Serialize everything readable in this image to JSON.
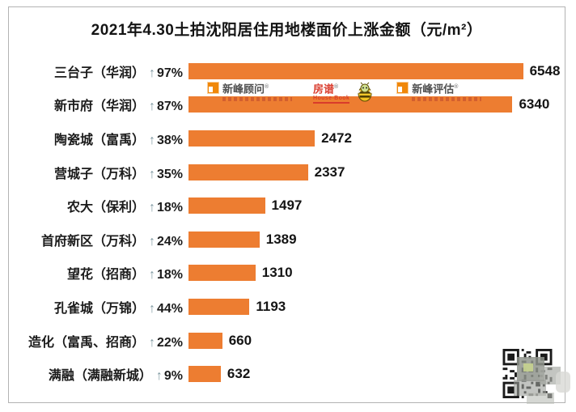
{
  "title": "2021年4.30土拍沈阳居住用地楼面价上涨金额（元/m²）",
  "chart_data": {
    "type": "bar",
    "orientation": "horizontal",
    "title": "2021年4.30土拍沈阳居住用地楼面价上涨金额（元/m²）",
    "categories": [
      "三台子（华润）",
      "新市府（华润）",
      "陶瓷城（富禹）",
      "营城子（万科）",
      "农大（保利）",
      "首府新区（万科）",
      "望花（招商）",
      "孔雀城（万锦）",
      "造化（富禹、招商）",
      "满融（满融新城）"
    ],
    "arrow": "↑",
    "pct_changes": [
      "97%",
      "87%",
      "38%",
      "35%",
      "18%",
      "24%",
      "18%",
      "44%",
      "22%",
      "9%"
    ],
    "values": [
      6548,
      6340,
      2472,
      2337,
      1497,
      1389,
      1310,
      1193,
      660,
      632
    ],
    "xlim": [
      0,
      7330
    ],
    "bar_color": "#ED7D31",
    "value_labels_shown": true,
    "grid": false,
    "legend": "none"
  },
  "watermark": {
    "logos": [
      {
        "label": "新峰顾问",
        "reg_mark": "®"
      },
      {
        "label": "房谱",
        "sublabel": "House-Book",
        "reg_mark": "®"
      },
      {
        "label": "新峰评估",
        "reg_mark": "®"
      }
    ]
  },
  "colors": {
    "bar": "#ED7D31",
    "arrow": "#7F99A1",
    "watermark_orange": "#F08300",
    "watermark_red": "#D93A2B",
    "frame_border": "#B3B3B3"
  }
}
